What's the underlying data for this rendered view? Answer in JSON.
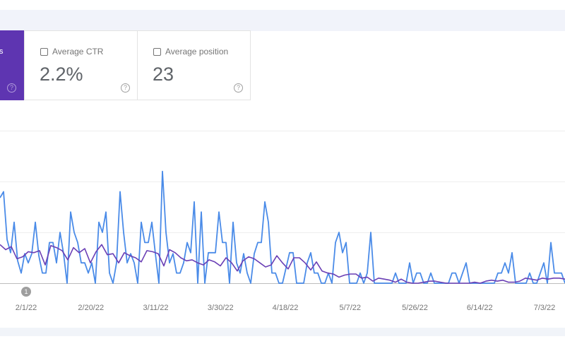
{
  "metric_cards": [
    {
      "label": "s",
      "selected": true
    },
    {
      "label": "Average CTR",
      "value": "2.2%",
      "selected": false
    },
    {
      "label": "Average position",
      "value": "23",
      "selected": false
    }
  ],
  "help_glyph": "?",
  "annotation_marker": "1",
  "colors": {
    "clicks": "#4a8be8",
    "impressions": "#6a3fb5",
    "selected_card": "#5e35b1"
  },
  "chart_data": {
    "type": "line",
    "x_tick_labels": [
      "2/1/22",
      "2/20/22",
      "3/11/22",
      "3/30/22",
      "4/18/22",
      "5/7/22",
      "5/26/22",
      "6/14/22",
      "7/3/22"
    ],
    "ylim": [
      0,
      15
    ],
    "grid": true,
    "series": [
      {
        "name": "clicks",
        "values": [
          8.4,
          9,
          4.3,
          3,
          6,
          2.2,
          1,
          2.9,
          2,
          2.9,
          6,
          2.7,
          1,
          1,
          4,
          4,
          2,
          5,
          2.9,
          0,
          7,
          5,
          4,
          2,
          2,
          1,
          2,
          0,
          6,
          5,
          7,
          1,
          0,
          2,
          9,
          5,
          2,
          2.9,
          2,
          0,
          6,
          4,
          4,
          6,
          2.9,
          0,
          11,
          5,
          2,
          2.9,
          1,
          1,
          2,
          4,
          3,
          8,
          0,
          7,
          0,
          3,
          3,
          3,
          7,
          4,
          4,
          0,
          6,
          2,
          1,
          2.9,
          1,
          0,
          2.9,
          4,
          4,
          8,
          6,
          1,
          1,
          0,
          0,
          1.5,
          3,
          3,
          0,
          0,
          0,
          2,
          3,
          1,
          1,
          0,
          0,
          1,
          0,
          4,
          5,
          3,
          4,
          0,
          0,
          0,
          1,
          0,
          1,
          5,
          0,
          0,
          0,
          0,
          0,
          0,
          1,
          0,
          0,
          0,
          2,
          0,
          1,
          1,
          0,
          0,
          1,
          0,
          0,
          0,
          0,
          0,
          1,
          1,
          0,
          1,
          2,
          0,
          0,
          0,
          0,
          0,
          0,
          0,
          0,
          1,
          1,
          2,
          1,
          3,
          0,
          0,
          0,
          0,
          1,
          0,
          0,
          1,
          2,
          0,
          4,
          1,
          1,
          1,
          0
        ]
      },
      {
        "name": "impressions",
        "values": [
          3.8,
          3.3,
          3.6,
          2.4,
          2.6,
          3.1,
          3.0,
          3.2,
          1.8,
          3.7,
          3.5,
          3.2,
          2.3,
          3.5,
          3.0,
          3.4,
          2.0,
          3.1,
          3.8,
          2.8,
          2.9,
          2.0,
          3.0,
          2.7,
          2.5,
          2.1,
          3.2,
          3.1,
          2.9,
          1.7,
          3.3,
          3.0,
          2.5,
          2.2,
          2.3,
          2.0,
          1.8,
          2.3,
          2.1,
          1.7,
          2.5,
          2.0,
          1.2,
          2.2,
          2.6,
          2.4,
          2.0,
          1.6,
          1.8,
          2.7,
          2.0,
          1.4,
          2.5,
          2.5,
          2.0,
          1.3,
          2.1,
          1.2,
          1.0,
          0.9,
          0.6,
          0.8,
          0.9,
          0.9,
          0.5,
          0.6,
          0.2,
          0.5,
          0.4,
          0.3,
          0.1,
          0.4,
          0.1,
          0.0,
          0.0,
          0.1,
          0.2,
          0.2,
          0.1,
          0.0,
          0.0,
          0.0,
          0.0,
          0.0,
          0.1,
          0.0,
          0.2,
          0.3,
          0.2,
          0.3,
          0.1,
          0.1,
          0.2,
          0.5,
          0.4,
          0.3,
          0.5,
          0.4,
          0.5,
          0.5,
          0.4
        ]
      }
    ]
  }
}
